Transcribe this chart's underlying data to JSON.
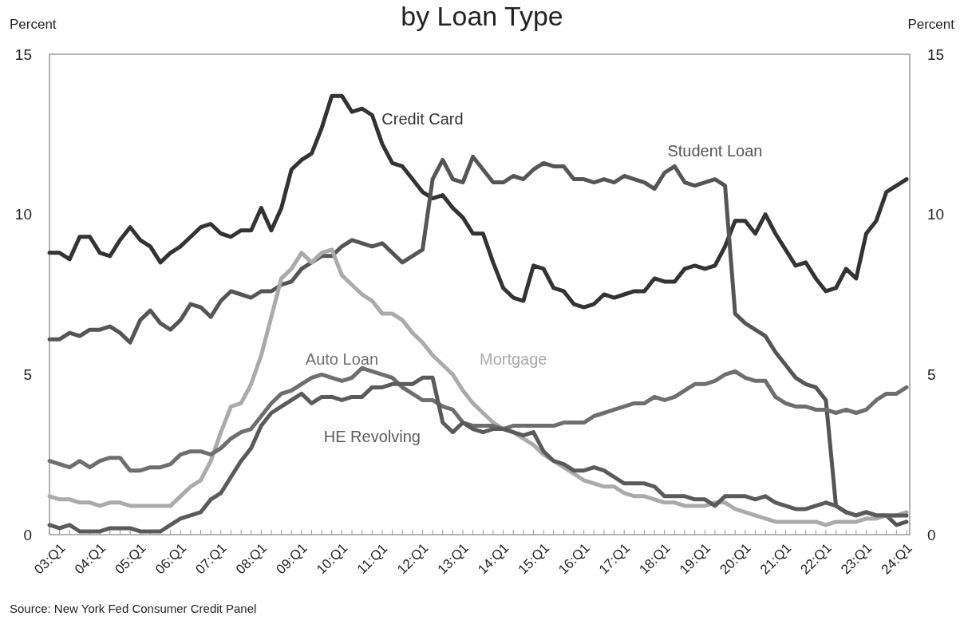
{
  "chart_data": {
    "type": "line",
    "title": "by Loan Type",
    "ylabel": "Percent",
    "y2label": "Percent",
    "categories": [
      "03:Q1",
      null,
      null,
      null,
      "04:Q1",
      null,
      null,
      null,
      "05:Q1",
      null,
      null,
      null,
      "06:Q1",
      null,
      null,
      null,
      "07:Q1",
      null,
      null,
      null,
      "08:Q1",
      null,
      null,
      null,
      "09:Q1",
      null,
      null,
      null,
      "10:Q1",
      null,
      null,
      null,
      "11:Q1",
      null,
      null,
      null,
      "12:Q1",
      null,
      null,
      null,
      "13:Q1",
      null,
      null,
      null,
      "14:Q1",
      null,
      null,
      null,
      "15:Q1",
      null,
      null,
      null,
      "16:Q1",
      null,
      null,
      null,
      "17:Q1",
      null,
      null,
      null,
      "18:Q1",
      null,
      null,
      null,
      "19:Q1",
      null,
      null,
      null,
      "20:Q1",
      null,
      null,
      null,
      "21:Q1",
      null,
      null,
      null,
      "22:Q1",
      null,
      null,
      null,
      "23:Q1",
      null,
      null,
      null,
      "24:Q1",
      null
    ],
    "ylim": [
      0,
      15
    ],
    "yticks": [
      0,
      5,
      10,
      15
    ],
    "y2lim": [
      0,
      15
    ],
    "y2ticks": [
      0,
      5,
      10,
      15
    ],
    "grid": false,
    "line_style": "solid",
    "marker": "none",
    "series": [
      {
        "name": "Credit Card",
        "color": "#333333",
        "values": [
          8.8,
          8.8,
          8.6,
          9.3,
          9.3,
          8.8,
          8.7,
          9.2,
          9.6,
          9.2,
          9.0,
          8.5,
          8.8,
          9.0,
          9.3,
          9.6,
          9.7,
          9.4,
          9.3,
          9.5,
          9.5,
          10.2,
          9.5,
          10.2,
          11.4,
          11.7,
          11.9,
          12.7,
          13.7,
          13.7,
          13.2,
          13.3,
          13.1,
          12.2,
          11.6,
          11.5,
          11.1,
          10.7,
          10.5,
          10.6,
          10.2,
          9.9,
          9.4,
          9.4,
          8.5,
          7.7,
          7.4,
          7.3,
          8.4,
          8.3,
          7.7,
          7.6,
          7.2,
          7.1,
          7.2,
          7.5,
          7.4,
          7.5,
          7.6,
          7.6,
          8.0,
          7.9,
          7.9,
          8.3,
          8.4,
          8.3,
          8.4,
          9.0,
          9.8,
          9.8,
          9.4,
          10.0,
          9.4,
          8.9,
          8.4,
          8.5,
          8.0,
          7.6,
          7.7,
          8.3,
          8.0,
          9.4,
          9.8,
          10.7,
          10.9,
          11.1
        ]
      },
      {
        "name": "Student Loan",
        "color": "#555555",
        "values": [
          6.1,
          6.1,
          6.3,
          6.2,
          6.4,
          6.4,
          6.5,
          6.3,
          6.0,
          6.7,
          7.0,
          6.6,
          6.4,
          6.7,
          7.2,
          7.1,
          6.8,
          7.3,
          7.6,
          7.5,
          7.4,
          7.6,
          7.6,
          7.8,
          7.9,
          8.3,
          8.5,
          8.7,
          8.7,
          9.0,
          9.2,
          9.1,
          9.0,
          9.1,
          8.8,
          8.5,
          8.7,
          8.9,
          11.1,
          11.7,
          11.1,
          11.0,
          11.8,
          11.4,
          11.0,
          11.0,
          11.2,
          11.1,
          11.4,
          11.6,
          11.5,
          11.5,
          11.1,
          11.1,
          11.0,
          11.1,
          11.0,
          11.2,
          11.1,
          11.0,
          10.8,
          11.3,
          11.5,
          11.0,
          10.9,
          11.0,
          11.1,
          10.9,
          6.9,
          6.6,
          6.4,
          6.2,
          5.7,
          5.3,
          4.9,
          4.7,
          4.6,
          4.2,
          0.9,
          0.7,
          0.6,
          0.7,
          0.6,
          0.6,
          0.3,
          0.4
        ]
      },
      {
        "name": "Mortgage",
        "color": "#aaaaaa",
        "values": [
          1.2,
          1.1,
          1.1,
          1.0,
          1.0,
          0.9,
          1.0,
          1.0,
          0.9,
          0.9,
          0.9,
          0.9,
          0.9,
          1.2,
          1.5,
          1.7,
          2.3,
          3.2,
          4.0,
          4.1,
          4.7,
          5.6,
          6.8,
          8.0,
          8.3,
          8.8,
          8.5,
          8.8,
          8.9,
          8.1,
          7.8,
          7.5,
          7.3,
          6.9,
          6.9,
          6.7,
          6.3,
          6.0,
          5.6,
          5.3,
          5.0,
          4.5,
          4.1,
          3.8,
          3.5,
          3.3,
          3.2,
          3.0,
          2.8,
          2.5,
          2.3,
          2.1,
          1.9,
          1.7,
          1.6,
          1.5,
          1.5,
          1.3,
          1.2,
          1.2,
          1.1,
          1.0,
          1.0,
          0.9,
          0.9,
          0.9,
          1.0,
          1.0,
          0.8,
          0.7,
          0.6,
          0.5,
          0.4,
          0.4,
          0.4,
          0.4,
          0.4,
          0.3,
          0.4,
          0.4,
          0.4,
          0.5,
          0.5,
          0.6,
          0.6,
          0.7
        ]
      },
      {
        "name": "Auto Loan",
        "color": "#6e6e6e",
        "values": [
          2.3,
          2.2,
          2.1,
          2.3,
          2.1,
          2.3,
          2.4,
          2.4,
          2.0,
          2.0,
          2.1,
          2.1,
          2.2,
          2.5,
          2.6,
          2.6,
          2.5,
          2.7,
          3.0,
          3.2,
          3.3,
          3.7,
          4.1,
          4.4,
          4.5,
          4.7,
          4.9,
          5.0,
          4.9,
          4.8,
          4.9,
          5.2,
          5.1,
          5.0,
          4.9,
          4.6,
          4.4,
          4.2,
          4.2,
          4.0,
          3.9,
          3.5,
          3.4,
          3.4,
          3.4,
          3.3,
          3.4,
          3.4,
          3.4,
          3.4,
          3.4,
          3.5,
          3.5,
          3.5,
          3.7,
          3.8,
          3.9,
          4.0,
          4.1,
          4.1,
          4.3,
          4.2,
          4.3,
          4.5,
          4.7,
          4.7,
          4.8,
          5.0,
          5.1,
          4.9,
          4.8,
          4.8,
          4.3,
          4.1,
          4.0,
          4.0,
          3.9,
          3.9,
          3.8,
          3.9,
          3.8,
          3.9,
          4.2,
          4.4,
          4.4,
          4.6
        ]
      },
      {
        "name": "HE Revolving",
        "color": "#5a5a5a",
        "values": [
          0.3,
          0.2,
          0.3,
          0.1,
          0.1,
          0.1,
          0.2,
          0.2,
          0.2,
          0.1,
          0.1,
          0.1,
          0.3,
          0.5,
          0.6,
          0.7,
          1.1,
          1.3,
          1.8,
          2.3,
          2.7,
          3.4,
          3.8,
          4.0,
          4.2,
          4.4,
          4.1,
          4.3,
          4.3,
          4.2,
          4.3,
          4.3,
          4.6,
          4.6,
          4.7,
          4.7,
          4.7,
          4.9,
          4.9,
          3.5,
          3.2,
          3.5,
          3.3,
          3.2,
          3.3,
          3.3,
          3.2,
          3.1,
          3.2,
          2.6,
          2.3,
          2.2,
          2.0,
          2.0,
          2.1,
          2.0,
          1.8,
          1.6,
          1.6,
          1.6,
          1.5,
          1.2,
          1.2,
          1.2,
          1.1,
          1.1,
          0.9,
          1.2,
          1.2,
          1.2,
          1.1,
          1.2,
          1.0,
          0.9,
          0.8,
          0.8,
          0.9,
          1.0,
          0.9,
          0.7,
          0.6,
          0.7,
          0.6,
          0.6,
          0.6,
          0.6
        ]
      }
    ],
    "annotations": [
      "Source: New York Fed Consumer Credit Panel"
    ]
  }
}
